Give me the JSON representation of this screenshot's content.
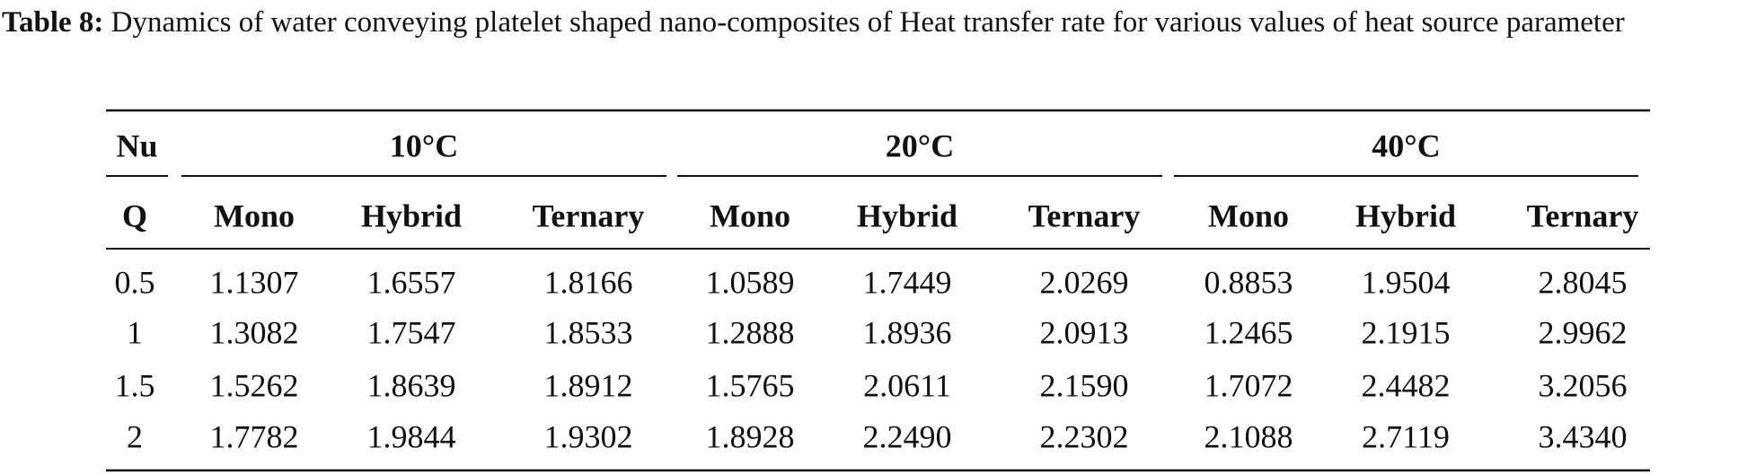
{
  "header": {
    "label": "Table 8:",
    "title": "Dynamics of water conveying platelet shaped nano-composites of Heat transfer rate for various values of heat source parameter"
  },
  "table": {
    "group_header": [
      "Nu",
      "10°C",
      "20°C",
      "40°C"
    ],
    "columns": [
      "Q",
      "Mono",
      "Hybrid",
      "Ternary",
      "Mono",
      "Hybrid",
      "Ternary",
      "Mono",
      "Hybrid",
      "Ternary"
    ],
    "rows": [
      [
        "0.5",
        "1.1307",
        "1.6557",
        "1.8166",
        "1.0589",
        "1.7449",
        "2.0269",
        "0.8853",
        "1.9504",
        "2.8045"
      ],
      [
        "1",
        "1.3082",
        "1.7547",
        "1.8533",
        "1.2888",
        "1.8936",
        "2.0913",
        "1.2465",
        "2.1915",
        "2.9962"
      ],
      [
        "1.5",
        "1.5262",
        "1.8639",
        "1.8912",
        "1.5765",
        "2.0611",
        "2.1590",
        "1.7072",
        "2.4482",
        "3.2056"
      ],
      [
        "2",
        "1.7782",
        "1.9844",
        "1.9302",
        "1.8928",
        "2.2490",
        "2.2302",
        "2.1088",
        "2.7119",
        "3.4340"
      ]
    ]
  }
}
